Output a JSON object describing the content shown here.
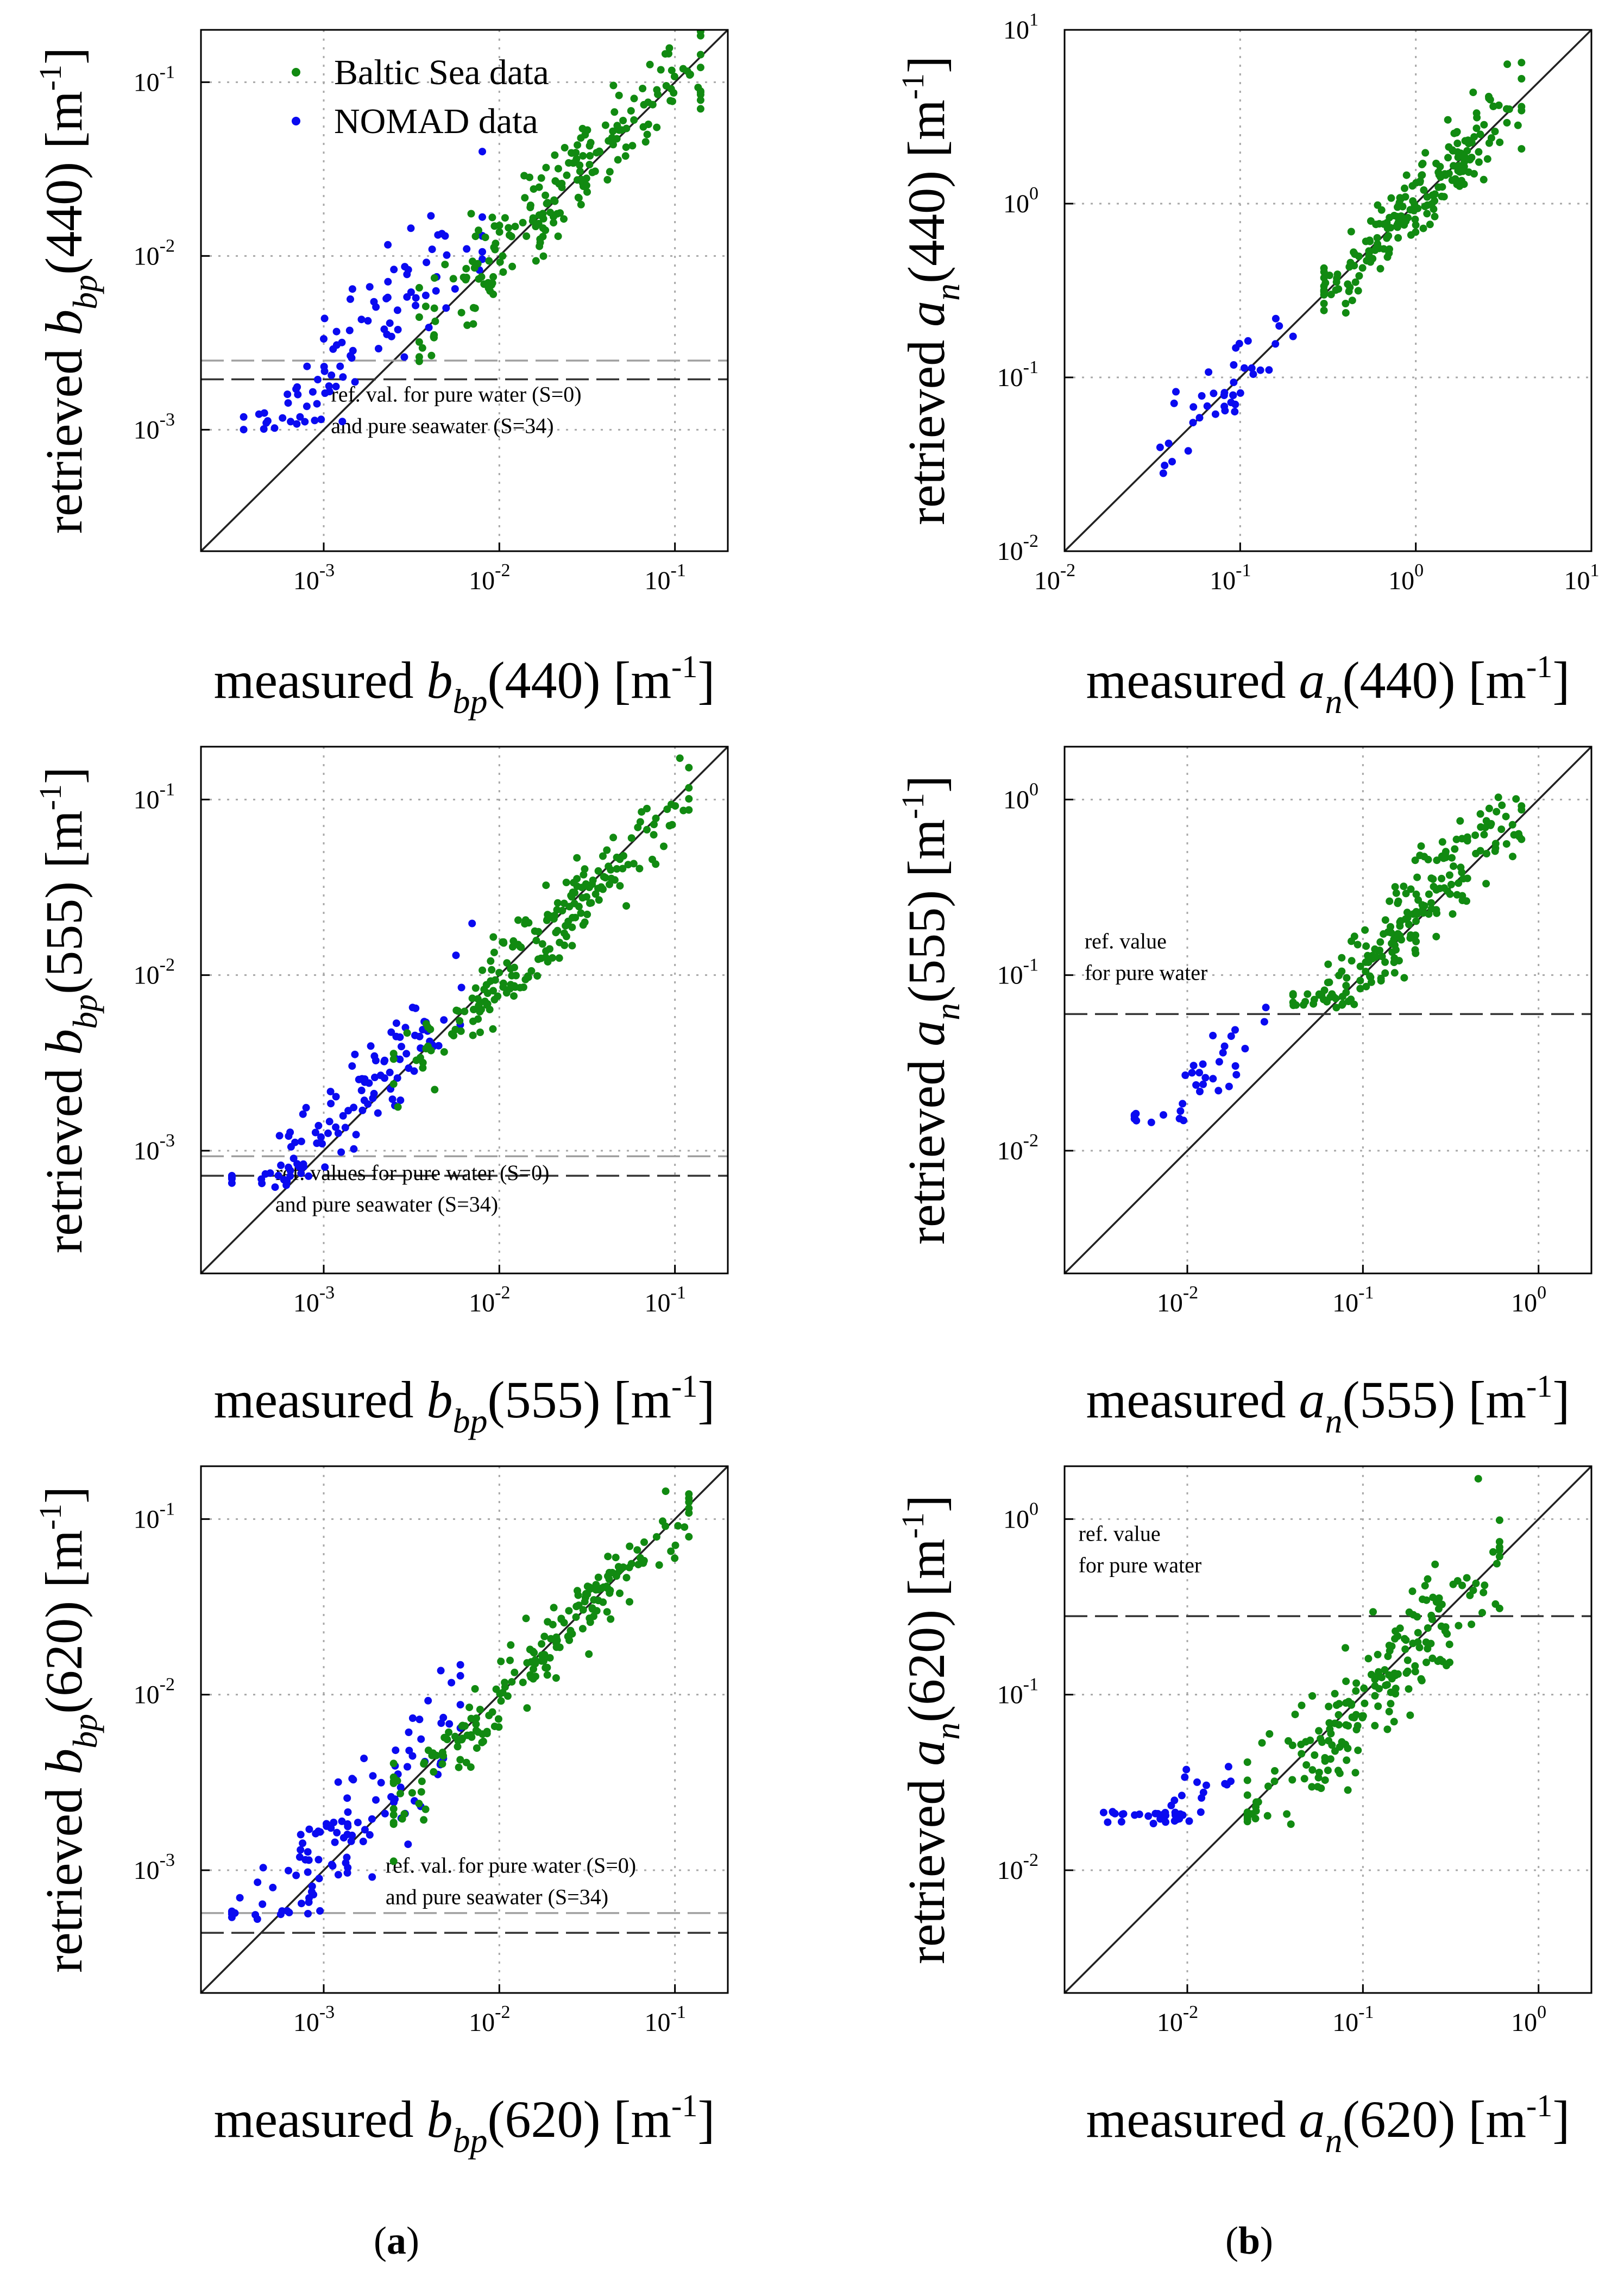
{
  "colors": {
    "baltic": "#118a11",
    "nomad": "#0a0af0",
    "ref_dark": "#333333",
    "ref_light": "#a0a0a0"
  },
  "legend": {
    "baltic": "Baltic Sea data",
    "nomad": "NOMAD data"
  },
  "labels": {
    "left": "(a)",
    "right": "(b)",
    "left_letter": "a",
    "right_letter": "b"
  },
  "chart_data": [
    {
      "id": "bbp440",
      "type": "scatter",
      "scale": "log",
      "xlim": [
        0.0002,
        0.2
      ],
      "ylim": [
        0.0002,
        0.2
      ],
      "xticks": [
        {
          "pow": -3
        },
        {
          "pow": -2
        },
        {
          "pow": -1
        }
      ],
      "yticks": [
        {
          "pow": -3
        },
        {
          "pow": -2
        },
        {
          "pow": -1
        }
      ],
      "xlabel": {
        "prefix": "measured",
        "var": "b",
        "sub": "bp",
        "wl": "(440)",
        "unit_pre": " [m",
        "unit_sup": "-1",
        "unit_post": "]"
      },
      "ylabel": {
        "prefix": "retrieved",
        "var": "b",
        "sub": "bp",
        "wl": "(440)",
        "unit_pre": " [m",
        "unit_sup": "-1",
        "unit_post": "]"
      },
      "ref_lines": [
        {
          "y": 0.0025,
          "style": "light"
        },
        {
          "y": 0.00195,
          "style": "dark"
        }
      ],
      "ref_text": [
        "ref. val. for pure water (S=0)",
        "and pure seawater (S=34)"
      ],
      "ref_text_pos": [
        0.0011,
        0.00145
      ],
      "legend": true,
      "series": [
        {
          "name": "NOMAD data",
          "color": "nomad",
          "x_range": [
            0.00035,
            0.008
          ],
          "bias": 2.2,
          "spread": 0.55,
          "floor": 0.001,
          "count": 95,
          "seed": 11
        },
        {
          "name": "Baltic Sea data",
          "color": "baltic",
          "x_range": [
            0.0035,
            0.14
          ],
          "bias": 1.05,
          "spread": 0.45,
          "floor": 0.0002,
          "count": 200,
          "seed": 12
        }
      ]
    },
    {
      "id": "an440",
      "type": "scatter",
      "scale": "log",
      "xlim": [
        0.01,
        10
      ],
      "ylim": [
        0.01,
        10
      ],
      "xticks": [
        {
          "pow": -2
        },
        {
          "pow": -1
        },
        {
          "pow": 0
        },
        {
          "pow": 1
        }
      ],
      "yticks": [
        {
          "pow": -2
        },
        {
          "pow": -1
        },
        {
          "pow": 0
        },
        {
          "pow": 1
        }
      ],
      "xlabel": {
        "prefix": "measured",
        "var": "a",
        "sub": "n",
        "wl": "(440)",
        "unit_pre": " [m",
        "unit_sup": "-1",
        "unit_post": "]"
      },
      "ylabel": {
        "prefix": "retrieved",
        "var": "a",
        "sub": "n",
        "wl": "(440)",
        "unit_pre": " [m",
        "unit_sup": "-1",
        "unit_post": "]"
      },
      "ref_lines": [],
      "ref_text": [],
      "ref_text_pos": [
        0,
        0
      ],
      "legend": false,
      "series": [
        {
          "name": "NOMAD data",
          "color": "nomad",
          "x_range": [
            0.035,
            0.2
          ],
          "bias": 1.05,
          "spread": 0.35,
          "floor": 0.01,
          "count": 40,
          "seed": 21
        },
        {
          "name": "Baltic Sea data",
          "color": "baltic",
          "x_range": [
            0.3,
            4.0
          ],
          "bias": 1.0,
          "spread": 0.35,
          "floor": 0.01,
          "count": 200,
          "seed": 22
        }
      ]
    },
    {
      "id": "bbp555",
      "type": "scatter",
      "scale": "log",
      "xlim": [
        0.0002,
        0.2
      ],
      "ylim": [
        0.0002,
        0.2
      ],
      "xticks": [
        {
          "pow": -3
        },
        {
          "pow": -2
        },
        {
          "pow": -1
        }
      ],
      "yticks": [
        {
          "pow": -3
        },
        {
          "pow": -2
        },
        {
          "pow": -1
        }
      ],
      "xlabel": {
        "prefix": "measured",
        "var": "b",
        "sub": "bp",
        "wl": "(555)",
        "unit_pre": " [m",
        "unit_sup": "-1",
        "unit_post": "]"
      },
      "ylabel": {
        "prefix": "retrieved",
        "var": "b",
        "sub": "bp",
        "wl": "(555)",
        "unit_pre": " [m",
        "unit_sup": "-1",
        "unit_post": "]"
      },
      "ref_lines": [
        {
          "y": 0.00093,
          "style": "light"
        },
        {
          "y": 0.00072,
          "style": "dark"
        }
      ],
      "ref_text": [
        "ref. values for pure water (S=0)",
        "and pure seawater (S=34)"
      ],
      "ref_text_pos": [
        0.00053,
        0.00068
      ],
      "legend": false,
      "series": [
        {
          "name": "NOMAD data",
          "color": "nomad",
          "x_range": [
            0.0003,
            0.007
          ],
          "bias": 1.25,
          "spread": 0.4,
          "floor": 0.00062,
          "count": 110,
          "seed": 31
        },
        {
          "name": "Baltic Sea data",
          "color": "baltic",
          "x_range": [
            0.0025,
            0.12
          ],
          "bias": 0.95,
          "spread": 0.35,
          "floor": 0.0002,
          "count": 200,
          "seed": 32
        }
      ]
    },
    {
      "id": "an555",
      "type": "scatter",
      "scale": "log",
      "xlim": [
        0.002,
        2
      ],
      "ylim": [
        0.002,
        2
      ],
      "xticks": [
        {
          "pow": -2
        },
        {
          "pow": -1
        },
        {
          "pow": 0
        }
      ],
      "yticks": [
        {
          "pow": -2
        },
        {
          "pow": -1
        },
        {
          "pow": 0
        }
      ],
      "xlabel": {
        "prefix": "measured",
        "var": "a",
        "sub": "n",
        "wl": "(555)",
        "unit_pre": " [m",
        "unit_sup": "-1",
        "unit_post": "]"
      },
      "ylabel": {
        "prefix": "retrieved",
        "var": "a",
        "sub": "n",
        "wl": "(555)",
        "unit_pre": " [m",
        "unit_sup": "-1",
        "unit_post": "]"
      },
      "ref_lines": [
        {
          "y": 0.06,
          "style": "dark"
        }
      ],
      "ref_text": [
        "ref. value",
        "for pure water"
      ],
      "ref_text_pos": [
        0.0026,
        0.142
      ],
      "legend": false,
      "series": [
        {
          "name": "NOMAD data",
          "color": "nomad",
          "x_range": [
            0.005,
            0.028
          ],
          "bias": 2.0,
          "spread": 0.35,
          "floor": 0.014,
          "count": 35,
          "seed": 41
        },
        {
          "name": "Baltic Sea data",
          "color": "baltic",
          "x_range": [
            0.04,
            0.8
          ],
          "bias": 1.15,
          "spread": 0.45,
          "floor": 0.065,
          "count": 200,
          "seed": 42
        }
      ]
    },
    {
      "id": "bbp620",
      "type": "scatter",
      "scale": "log",
      "xlim": [
        0.0002,
        0.2
      ],
      "ylim": [
        0.0002,
        0.2
      ],
      "xticks": [
        {
          "pow": -3
        },
        {
          "pow": -2
        },
        {
          "pow": -1
        }
      ],
      "yticks": [
        {
          "pow": -3
        },
        {
          "pow": -2
        },
        {
          "pow": -1
        }
      ],
      "xlabel": {
        "prefix": "measured",
        "var": "b",
        "sub": "bp",
        "wl": "(620)",
        "unit_pre": " [m",
        "unit_sup": "-1",
        "unit_post": "]"
      },
      "ylabel": {
        "prefix": "retrieved",
        "var": "b",
        "sub": "bp",
        "wl": "(620)",
        "unit_pre": " [m",
        "unit_sup": "-1",
        "unit_post": "]"
      },
      "ref_lines": [
        {
          "y": 0.00057,
          "style": "light"
        },
        {
          "y": 0.00044,
          "style": "dark"
        }
      ],
      "ref_text": [
        "ref. val. for pure water (S=0)",
        "and pure seawater (S=34)"
      ],
      "ref_text_pos": [
        0.00225,
        0.00097
      ],
      "legend": false,
      "series": [
        {
          "name": "NOMAD data",
          "color": "nomad",
          "x_range": [
            0.0003,
            0.006
          ],
          "bias": 1.3,
          "spread": 0.5,
          "floor": 0.00052,
          "count": 110,
          "seed": 51
        },
        {
          "name": "Baltic Sea data",
          "color": "baltic",
          "x_range": [
            0.0025,
            0.12
          ],
          "bias": 0.95,
          "spread": 0.35,
          "floor": 0.0002,
          "count": 200,
          "seed": 52
        }
      ]
    },
    {
      "id": "an620",
      "type": "scatter",
      "scale": "log",
      "xlim": [
        0.002,
        2
      ],
      "ylim": [
        0.002,
        2
      ],
      "xticks": [
        {
          "pow": -2
        },
        {
          "pow": -1
        },
        {
          "pow": 0
        }
      ],
      "yticks": [
        {
          "pow": -2
        },
        {
          "pow": -1
        },
        {
          "pow": 0
        }
      ],
      "xlabel": {
        "prefix": "measured",
        "var": "a",
        "sub": "n",
        "wl": "(620)",
        "unit_pre": " [m",
        "unit_sup": "-1",
        "unit_post": "]"
      },
      "ylabel": {
        "prefix": "retrieved",
        "var": "a",
        "sub": "n",
        "wl": "(620)",
        "unit_pre": " [m",
        "unit_sup": "-1",
        "unit_post": "]"
      },
      "ref_lines": [
        {
          "y": 0.28,
          "style": "dark"
        }
      ],
      "ref_text": [
        "ref. value",
        "for pure water"
      ],
      "ref_text_pos": [
        0.0024,
        0.75
      ],
      "legend": false,
      "series": [
        {
          "name": "NOMAD data",
          "color": "nomad",
          "x_range": [
            0.003,
            0.018
          ],
          "bias": 2.2,
          "spread": 0.35,
          "floor": 0.018,
          "count": 45,
          "seed": 61
        },
        {
          "name": "Baltic Sea data",
          "color": "baltic",
          "x_range": [
            0.022,
            0.6
          ],
          "bias": 0.9,
          "spread": 0.6,
          "floor": 0.018,
          "count": 200,
          "seed": 62
        }
      ]
    }
  ]
}
